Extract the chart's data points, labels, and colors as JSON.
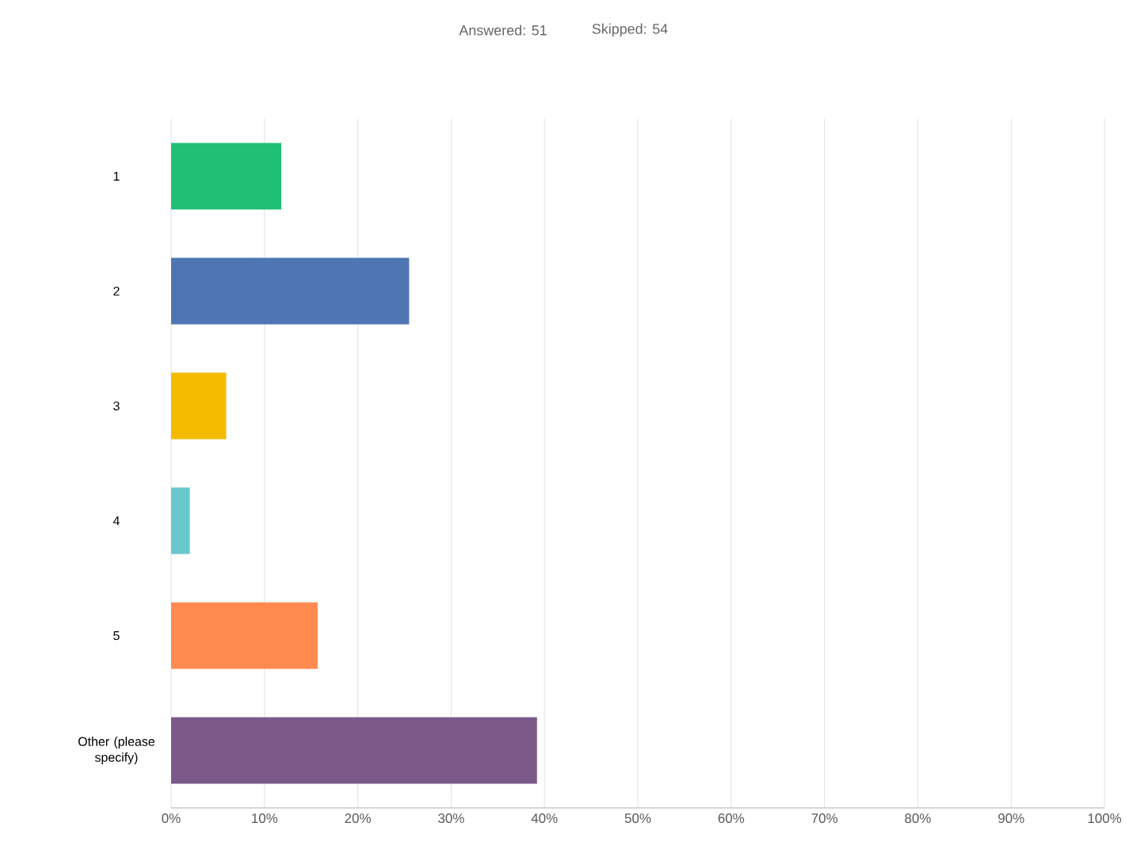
{
  "chart_data": {
    "type": "bar",
    "orientation": "horizontal",
    "annotations": [
      "Answered: 51",
      "Skipped: 54"
    ],
    "categories": [
      "1",
      "2",
      "3",
      "4",
      "5",
      "Other (please specify)"
    ],
    "values": [
      11.8,
      25.5,
      5.9,
      2.0,
      15.7,
      39.2
    ],
    "colors": [
      "#1fbf75",
      "#4f76b3",
      "#f5bb00",
      "#6ac7cb",
      "#ff8a4f",
      "#7b5a8a"
    ],
    "xlim": [
      0,
      100
    ],
    "xticks": [
      {
        "value": 0,
        "label": "0%"
      },
      {
        "value": 10,
        "label": "10%"
      },
      {
        "value": 20,
        "label": "20%"
      },
      {
        "value": 30,
        "label": "30%"
      },
      {
        "value": 40,
        "label": "40%"
      },
      {
        "value": 50,
        "label": "50%"
      },
      {
        "value": 60,
        "label": "60%"
      },
      {
        "value": 70,
        "label": "70%"
      },
      {
        "value": 80,
        "label": "80%"
      },
      {
        "value": 90,
        "label": "90%"
      },
      {
        "value": 100,
        "label": "100%"
      }
    ],
    "grid": "x"
  }
}
